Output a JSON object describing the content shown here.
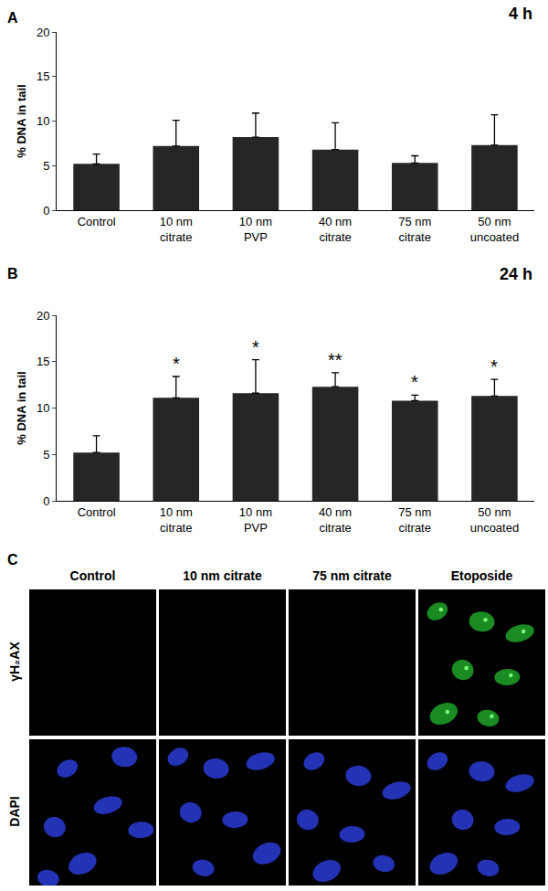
{
  "chart_data": [
    {
      "panel": "A",
      "type": "bar",
      "title": "4 h",
      "categories": [
        "Control",
        "10 nm citrate",
        "10 nm PVP",
        "40 nm citrate",
        "75 nm citrate",
        "50 nm uncoated"
      ],
      "values": [
        5.2,
        7.2,
        8.2,
        6.8,
        5.3,
        7.3
      ],
      "errors": [
        1.1,
        2.9,
        2.7,
        3.0,
        0.8,
        3.4
      ],
      "y_label": "% DNA in tail",
      "ylim": [
        0,
        20
      ],
      "yticks": [
        0,
        5,
        10,
        15,
        20
      ],
      "color": "#262626",
      "grid": false
    },
    {
      "panel": "B",
      "type": "bar",
      "title": "24 h",
      "categories": [
        "Control",
        "10 nm citrate",
        "10 nm PVP",
        "40 nm citrate",
        "75 nm citrate",
        "50 nm uncoated"
      ],
      "values": [
        5.2,
        11.1,
        11.6,
        12.3,
        10.8,
        11.3
      ],
      "errors": [
        1.8,
        2.3,
        3.6,
        1.5,
        0.6,
        1.8
      ],
      "significance": [
        null,
        "*",
        "*",
        "**",
        "*",
        "*"
      ],
      "y_label": "% DNA in tail",
      "ylim": [
        0,
        20
      ],
      "yticks": [
        0,
        5,
        10,
        15,
        20
      ],
      "color": "#262626",
      "grid": false
    }
  ],
  "image_panel": {
    "panel": "C",
    "columns": [
      "Control",
      "10 nm citrate",
      "75 nm citrate",
      "Etoposide"
    ],
    "rows": [
      "γH₂AX",
      "DAPI"
    ],
    "positive": [
      false,
      false,
      false,
      true
    ]
  }
}
